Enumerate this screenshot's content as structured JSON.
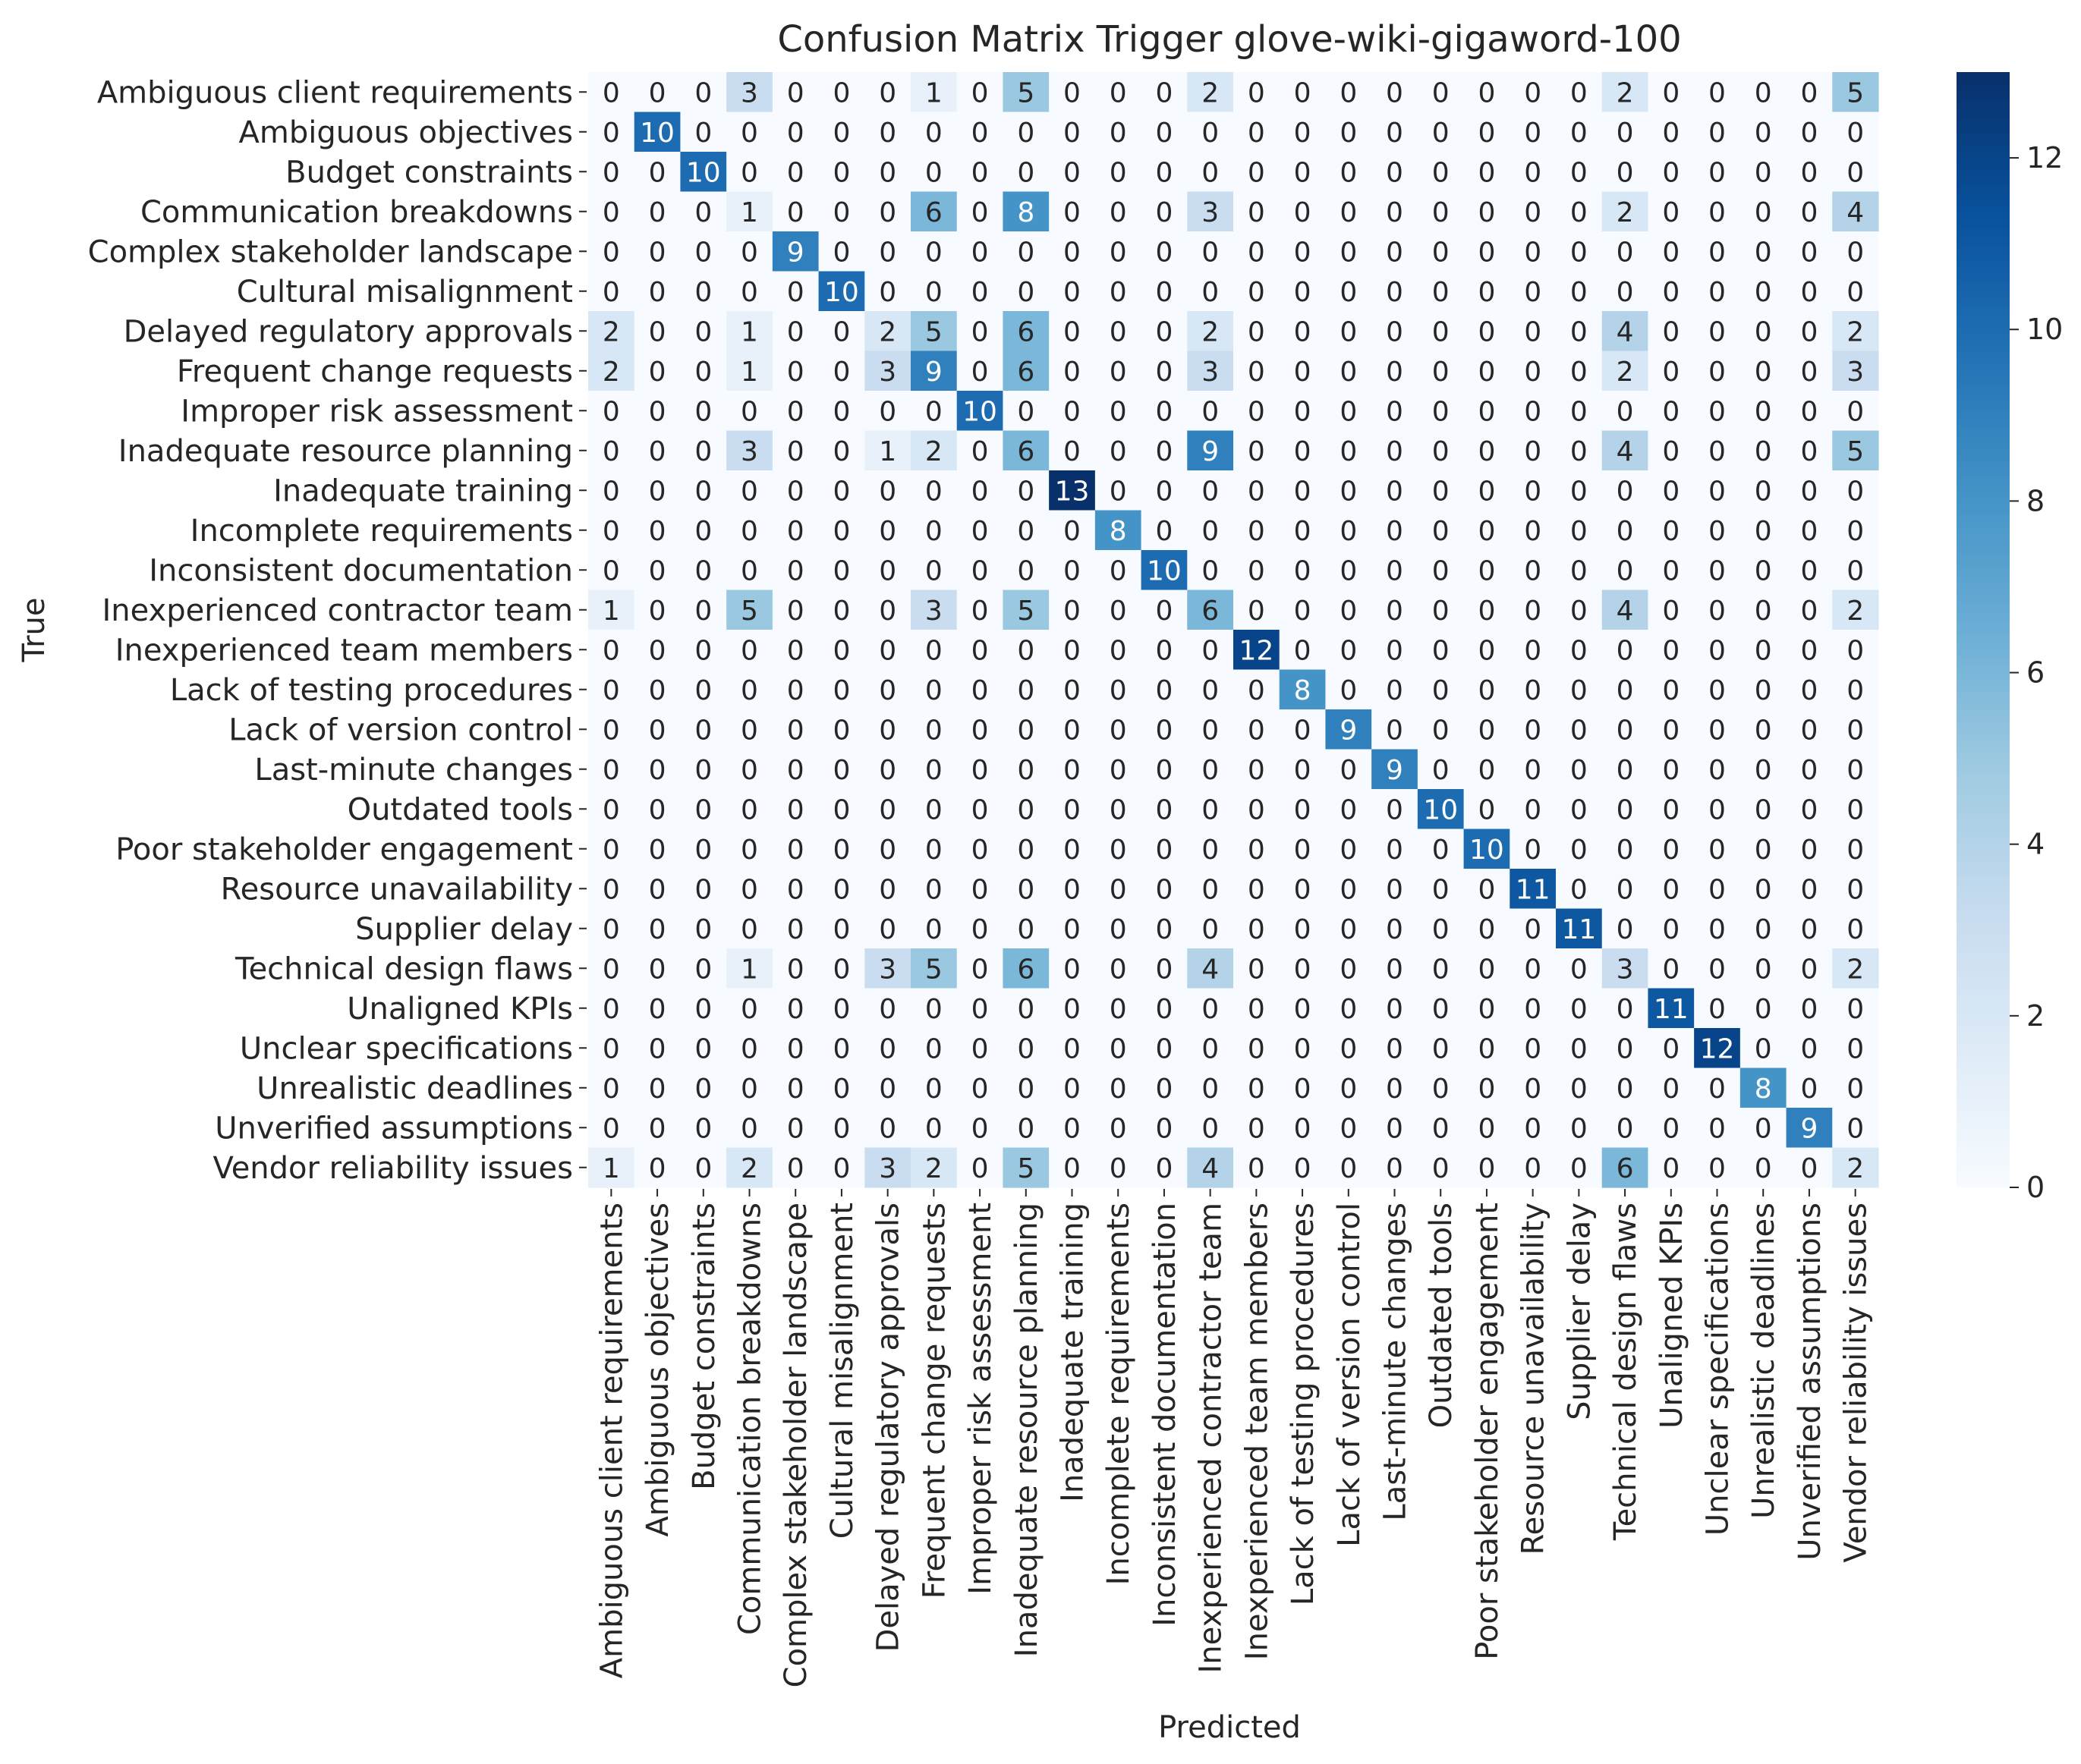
{
  "chart_data": {
    "type": "heatmap",
    "title": "Confusion Matrix Trigger glove-wiki-gigaword-100",
    "xlabel": "Predicted",
    "ylabel": "True",
    "colormap": "Blues",
    "colormap_low": "#f7fbff",
    "colormap_high": "#08306b",
    "vmin": 0,
    "vmax": 13,
    "colorbar_ticks": [
      0,
      2,
      4,
      6,
      8,
      10,
      12
    ],
    "labels": [
      "Ambiguous client requirements",
      "Ambiguous objectives",
      "Budget constraints",
      "Communication breakdowns",
      "Complex stakeholder landscape",
      "Cultural misalignment",
      "Delayed regulatory approvals",
      "Frequent change requests",
      "Improper risk assessment",
      "Inadequate resource planning",
      "Inadequate training",
      "Incomplete requirements",
      "Inconsistent documentation",
      "Inexperienced contractor team",
      "Inexperienced team members",
      "Lack of testing procedures",
      "Lack of version control",
      "Last-minute changes",
      "Outdated tools",
      "Poor stakeholder engagement",
      "Resource unavailability",
      "Supplier delay",
      "Technical design flaws",
      "Unaligned KPIs",
      "Unclear specifications",
      "Unrealistic deadlines",
      "Unverified assumptions",
      "Vendor reliability issues"
    ],
    "matrix": [
      [
        0,
        0,
        0,
        3,
        0,
        0,
        0,
        1,
        0,
        5,
        0,
        0,
        0,
        2,
        0,
        0,
        0,
        0,
        0,
        0,
        0,
        0,
        2,
        0,
        0,
        0,
        0,
        5
      ],
      [
        0,
        10,
        0,
        0,
        0,
        0,
        0,
        0,
        0,
        0,
        0,
        0,
        0,
        0,
        0,
        0,
        0,
        0,
        0,
        0,
        0,
        0,
        0,
        0,
        0,
        0,
        0,
        0
      ],
      [
        0,
        0,
        10,
        0,
        0,
        0,
        0,
        0,
        0,
        0,
        0,
        0,
        0,
        0,
        0,
        0,
        0,
        0,
        0,
        0,
        0,
        0,
        0,
        0,
        0,
        0,
        0,
        0
      ],
      [
        0,
        0,
        0,
        1,
        0,
        0,
        0,
        6,
        0,
        8,
        0,
        0,
        0,
        3,
        0,
        0,
        0,
        0,
        0,
        0,
        0,
        0,
        2,
        0,
        0,
        0,
        0,
        4
      ],
      [
        0,
        0,
        0,
        0,
        9,
        0,
        0,
        0,
        0,
        0,
        0,
        0,
        0,
        0,
        0,
        0,
        0,
        0,
        0,
        0,
        0,
        0,
        0,
        0,
        0,
        0,
        0,
        0
      ],
      [
        0,
        0,
        0,
        0,
        0,
        10,
        0,
        0,
        0,
        0,
        0,
        0,
        0,
        0,
        0,
        0,
        0,
        0,
        0,
        0,
        0,
        0,
        0,
        0,
        0,
        0,
        0,
        0
      ],
      [
        2,
        0,
        0,
        1,
        0,
        0,
        2,
        5,
        0,
        6,
        0,
        0,
        0,
        2,
        0,
        0,
        0,
        0,
        0,
        0,
        0,
        0,
        4,
        0,
        0,
        0,
        0,
        2
      ],
      [
        2,
        0,
        0,
        1,
        0,
        0,
        3,
        9,
        0,
        6,
        0,
        0,
        0,
        3,
        0,
        0,
        0,
        0,
        0,
        0,
        0,
        0,
        2,
        0,
        0,
        0,
        0,
        3
      ],
      [
        0,
        0,
        0,
        0,
        0,
        0,
        0,
        0,
        10,
        0,
        0,
        0,
        0,
        0,
        0,
        0,
        0,
        0,
        0,
        0,
        0,
        0,
        0,
        0,
        0,
        0,
        0,
        0
      ],
      [
        0,
        0,
        0,
        3,
        0,
        0,
        1,
        2,
        0,
        6,
        0,
        0,
        0,
        9,
        0,
        0,
        0,
        0,
        0,
        0,
        0,
        0,
        4,
        0,
        0,
        0,
        0,
        5
      ],
      [
        0,
        0,
        0,
        0,
        0,
        0,
        0,
        0,
        0,
        0,
        13,
        0,
        0,
        0,
        0,
        0,
        0,
        0,
        0,
        0,
        0,
        0,
        0,
        0,
        0,
        0,
        0,
        0
      ],
      [
        0,
        0,
        0,
        0,
        0,
        0,
        0,
        0,
        0,
        0,
        0,
        8,
        0,
        0,
        0,
        0,
        0,
        0,
        0,
        0,
        0,
        0,
        0,
        0,
        0,
        0,
        0,
        0
      ],
      [
        0,
        0,
        0,
        0,
        0,
        0,
        0,
        0,
        0,
        0,
        0,
        0,
        10,
        0,
        0,
        0,
        0,
        0,
        0,
        0,
        0,
        0,
        0,
        0,
        0,
        0,
        0,
        0
      ],
      [
        1,
        0,
        0,
        5,
        0,
        0,
        0,
        3,
        0,
        5,
        0,
        0,
        0,
        6,
        0,
        0,
        0,
        0,
        0,
        0,
        0,
        0,
        4,
        0,
        0,
        0,
        0,
        2
      ],
      [
        0,
        0,
        0,
        0,
        0,
        0,
        0,
        0,
        0,
        0,
        0,
        0,
        0,
        0,
        12,
        0,
        0,
        0,
        0,
        0,
        0,
        0,
        0,
        0,
        0,
        0,
        0,
        0
      ],
      [
        0,
        0,
        0,
        0,
        0,
        0,
        0,
        0,
        0,
        0,
        0,
        0,
        0,
        0,
        0,
        8,
        0,
        0,
        0,
        0,
        0,
        0,
        0,
        0,
        0,
        0,
        0,
        0
      ],
      [
        0,
        0,
        0,
        0,
        0,
        0,
        0,
        0,
        0,
        0,
        0,
        0,
        0,
        0,
        0,
        0,
        9,
        0,
        0,
        0,
        0,
        0,
        0,
        0,
        0,
        0,
        0,
        0
      ],
      [
        0,
        0,
        0,
        0,
        0,
        0,
        0,
        0,
        0,
        0,
        0,
        0,
        0,
        0,
        0,
        0,
        0,
        9,
        0,
        0,
        0,
        0,
        0,
        0,
        0,
        0,
        0,
        0
      ],
      [
        0,
        0,
        0,
        0,
        0,
        0,
        0,
        0,
        0,
        0,
        0,
        0,
        0,
        0,
        0,
        0,
        0,
        0,
        10,
        0,
        0,
        0,
        0,
        0,
        0,
        0,
        0,
        0
      ],
      [
        0,
        0,
        0,
        0,
        0,
        0,
        0,
        0,
        0,
        0,
        0,
        0,
        0,
        0,
        0,
        0,
        0,
        0,
        0,
        10,
        0,
        0,
        0,
        0,
        0,
        0,
        0,
        0
      ],
      [
        0,
        0,
        0,
        0,
        0,
        0,
        0,
        0,
        0,
        0,
        0,
        0,
        0,
        0,
        0,
        0,
        0,
        0,
        0,
        0,
        11,
        0,
        0,
        0,
        0,
        0,
        0,
        0
      ],
      [
        0,
        0,
        0,
        0,
        0,
        0,
        0,
        0,
        0,
        0,
        0,
        0,
        0,
        0,
        0,
        0,
        0,
        0,
        0,
        0,
        0,
        11,
        0,
        0,
        0,
        0,
        0,
        0
      ],
      [
        0,
        0,
        0,
        1,
        0,
        0,
        3,
        5,
        0,
        6,
        0,
        0,
        0,
        4,
        0,
        0,
        0,
        0,
        0,
        0,
        0,
        0,
        3,
        0,
        0,
        0,
        0,
        2
      ],
      [
        0,
        0,
        0,
        0,
        0,
        0,
        0,
        0,
        0,
        0,
        0,
        0,
        0,
        0,
        0,
        0,
        0,
        0,
        0,
        0,
        0,
        0,
        0,
        11,
        0,
        0,
        0,
        0
      ],
      [
        0,
        0,
        0,
        0,
        0,
        0,
        0,
        0,
        0,
        0,
        0,
        0,
        0,
        0,
        0,
        0,
        0,
        0,
        0,
        0,
        0,
        0,
        0,
        0,
        12,
        0,
        0,
        0
      ],
      [
        0,
        0,
        0,
        0,
        0,
        0,
        0,
        0,
        0,
        0,
        0,
        0,
        0,
        0,
        0,
        0,
        0,
        0,
        0,
        0,
        0,
        0,
        0,
        0,
        0,
        8,
        0,
        0
      ],
      [
        0,
        0,
        0,
        0,
        0,
        0,
        0,
        0,
        0,
        0,
        0,
        0,
        0,
        0,
        0,
        0,
        0,
        0,
        0,
        0,
        0,
        0,
        0,
        0,
        0,
        0,
        9,
        0
      ],
      [
        1,
        0,
        0,
        2,
        0,
        0,
        3,
        2,
        0,
        5,
        0,
        0,
        0,
        4,
        0,
        0,
        0,
        0,
        0,
        0,
        0,
        0,
        6,
        0,
        0,
        0,
        0,
        2
      ]
    ]
  }
}
